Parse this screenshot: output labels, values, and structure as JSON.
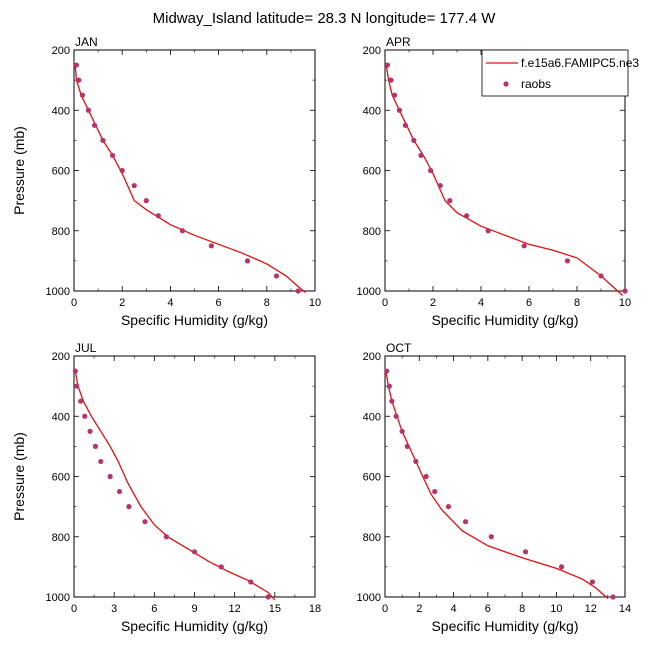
{
  "title": "Midway_Island  latitude= 28.3 N longitude= 177.4 W",
  "legend": {
    "model_label": "f.e15a6.FAMIPC5.ne3",
    "obs_label": "raobs"
  },
  "colors": {
    "model_line": "#e01010",
    "obs_marker": "#b8336a"
  },
  "chart_data": [
    {
      "type": "line",
      "panel": "JAN",
      "xlabel": "Specific Humidity (g/kg)",
      "ylabel": "Pressure (mb)",
      "xlim": [
        0,
        10
      ],
      "ylim": [
        1000,
        200
      ],
      "y_inverted": true,
      "xticks": [
        0,
        2,
        4,
        6,
        8,
        10
      ],
      "yticks": [
        200,
        400,
        600,
        800,
        1000
      ],
      "series": [
        {
          "name": "f.e15a6.FAMIPC5.ne3",
          "style": "line",
          "x": [
            0.05,
            0.1,
            0.3,
            0.6,
            0.9,
            1.2,
            1.6,
            2.0,
            2.5,
            3.0,
            4.0,
            5.0,
            6.0,
            7.0,
            8.0,
            8.8,
            9.3,
            9.6
          ],
          "y": [
            250,
            300,
            350,
            400,
            450,
            500,
            550,
            610,
            700,
            730,
            780,
            815,
            845,
            875,
            910,
            950,
            985,
            1005
          ]
        },
        {
          "name": "raobs",
          "style": "markers",
          "x": [
            0.1,
            0.2,
            0.35,
            0.6,
            0.85,
            1.2,
            1.6,
            2.0,
            2.5,
            3.0,
            3.5,
            4.5,
            5.7,
            7.2,
            8.4,
            9.3
          ],
          "y": [
            250,
            300,
            350,
            400,
            450,
            500,
            550,
            600,
            650,
            700,
            750,
            800,
            850,
            900,
            950,
            1000
          ]
        }
      ]
    },
    {
      "type": "line",
      "panel": "APR",
      "xlabel": "Specific Humidity (g/kg)",
      "ylabel": "",
      "xlim": [
        0,
        10
      ],
      "ylim": [
        1000,
        200
      ],
      "y_inverted": true,
      "xticks": [
        0,
        2,
        4,
        6,
        8,
        10
      ],
      "yticks": [
        200,
        400,
        600,
        800,
        1000
      ],
      "series": [
        {
          "name": "f.e15a6.FAMIPC5.ne3",
          "style": "line",
          "x": [
            0.05,
            0.15,
            0.3,
            0.6,
            0.9,
            1.2,
            1.6,
            2.0,
            2.5,
            3.0,
            4.0,
            5.0,
            6.0,
            7.0,
            8.0,
            9.0,
            9.9
          ],
          "y": [
            250,
            300,
            350,
            400,
            450,
            500,
            550,
            610,
            700,
            740,
            785,
            815,
            845,
            865,
            890,
            950,
            1015
          ]
        },
        {
          "name": "raobs",
          "style": "markers",
          "x": [
            0.1,
            0.25,
            0.4,
            0.6,
            0.85,
            1.2,
            1.5,
            1.9,
            2.3,
            2.7,
            3.4,
            4.3,
            5.8,
            7.6,
            9.0,
            10.0
          ],
          "y": [
            250,
            300,
            350,
            400,
            450,
            500,
            550,
            600,
            650,
            700,
            750,
            800,
            850,
            900,
            950,
            1000
          ]
        }
      ]
    },
    {
      "type": "line",
      "panel": "JUL",
      "xlabel": "Specific Humidity (g/kg)",
      "ylabel": "Pressure (mb)",
      "xlim": [
        0,
        18
      ],
      "ylim": [
        1000,
        200
      ],
      "y_inverted": true,
      "xticks": [
        0,
        3,
        6,
        9,
        12,
        15,
        18
      ],
      "yticks": [
        200,
        400,
        600,
        800,
        1000
      ],
      "series": [
        {
          "name": "f.e15a6.FAMIPC5.ne3",
          "style": "line",
          "x": [
            0.1,
            0.3,
            0.7,
            1.3,
            2.0,
            2.7,
            3.3,
            4.0,
            5.0,
            6.0,
            7.0,
            8.5,
            10.0,
            11.5,
            13.0,
            14.5,
            15.0
          ],
          "y": [
            250,
            300,
            350,
            400,
            450,
            500,
            550,
            620,
            700,
            760,
            800,
            840,
            880,
            915,
            945,
            985,
            1010
          ]
        },
        {
          "name": "raobs",
          "style": "markers",
          "x": [
            0.1,
            0.2,
            0.5,
            0.8,
            1.2,
            1.6,
            2.0,
            2.7,
            3.4,
            4.1,
            5.3,
            6.9,
            9.0,
            11.0,
            13.2,
            14.5
          ],
          "y": [
            250,
            300,
            350,
            400,
            450,
            500,
            550,
            600,
            650,
            700,
            750,
            800,
            850,
            900,
            950,
            1000
          ]
        }
      ]
    },
    {
      "type": "line",
      "panel": "OCT",
      "xlabel": "Specific Humidity (g/kg)",
      "ylabel": "",
      "xlim": [
        0,
        14
      ],
      "ylim": [
        1000,
        200
      ],
      "y_inverted": true,
      "xticks": [
        0,
        2,
        4,
        6,
        8,
        10,
        12,
        14
      ],
      "yticks": [
        200,
        400,
        600,
        800,
        1000
      ],
      "series": [
        {
          "name": "f.e15a6.FAMIPC5.ne3",
          "style": "line",
          "x": [
            0.05,
            0.2,
            0.4,
            0.7,
            1.0,
            1.4,
            1.8,
            2.2,
            2.7,
            3.3,
            4.5,
            6.0,
            8.0,
            10.0,
            11.5,
            12.3,
            13.0
          ],
          "y": [
            250,
            300,
            350,
            400,
            450,
            500,
            550,
            600,
            660,
            710,
            780,
            830,
            870,
            905,
            940,
            970,
            1005
          ]
        },
        {
          "name": "raobs",
          "style": "markers",
          "x": [
            0.1,
            0.25,
            0.4,
            0.65,
            1.0,
            1.3,
            1.8,
            2.4,
            2.9,
            3.7,
            4.7,
            6.2,
            8.2,
            10.3,
            12.1,
            13.3
          ],
          "y": [
            250,
            300,
            350,
            400,
            450,
            500,
            550,
            600,
            650,
            700,
            750,
            800,
            850,
            900,
            950,
            1000
          ]
        }
      ]
    }
  ]
}
